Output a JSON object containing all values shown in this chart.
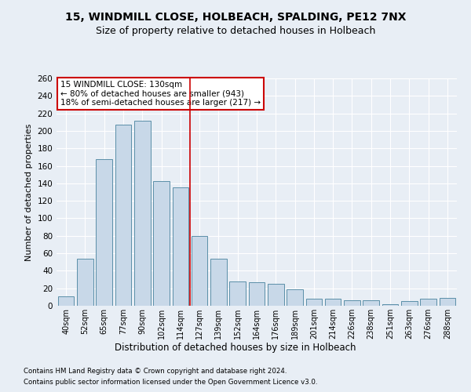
{
  "title": "15, WINDMILL CLOSE, HOLBEACH, SPALDING, PE12 7NX",
  "subtitle": "Size of property relative to detached houses in Holbeach",
  "xlabel": "Distribution of detached houses by size in Holbeach",
  "ylabel": "Number of detached properties",
  "categories": [
    "40sqm",
    "52sqm",
    "65sqm",
    "77sqm",
    "90sqm",
    "102sqm",
    "114sqm",
    "127sqm",
    "139sqm",
    "152sqm",
    "164sqm",
    "176sqm",
    "189sqm",
    "201sqm",
    "214sqm",
    "226sqm",
    "238sqm",
    "251sqm",
    "263sqm",
    "276sqm",
    "288sqm"
  ],
  "values": [
    11,
    54,
    168,
    207,
    212,
    143,
    135,
    80,
    54,
    28,
    27,
    25,
    19,
    8,
    8,
    6,
    6,
    2,
    5,
    8,
    9
  ],
  "bar_color": "#c8d8e8",
  "bar_edge_color": "#5b8fa8",
  "reference_line_color": "#cc0000",
  "annotation_title": "15 WINDMILL CLOSE: 130sqm",
  "annotation_line2": "← 80% of detached houses are smaller (943)",
  "annotation_line3": "18% of semi-detached houses are larger (217) →",
  "annotation_box_color": "#ffffff",
  "annotation_box_edge": "#cc0000",
  "bg_color": "#e8eef5",
  "ylim": [
    0,
    260
  ],
  "yticks": [
    0,
    20,
    40,
    60,
    80,
    100,
    120,
    140,
    160,
    180,
    200,
    220,
    240,
    260
  ],
  "footer1": "Contains HM Land Registry data © Crown copyright and database right 2024.",
  "footer2": "Contains public sector information licensed under the Open Government Licence v3.0."
}
